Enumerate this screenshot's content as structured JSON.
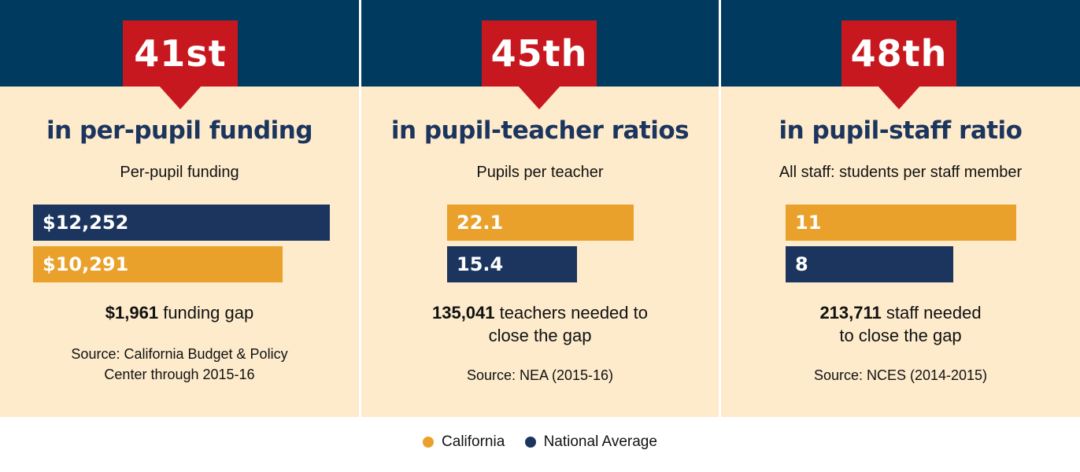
{
  "colors": {
    "california": "#eaa12c",
    "national_average": "#1c355e",
    "header": "#003a5e",
    "rank_badge": "#c8181f",
    "panel_bg": "#fdebcc"
  },
  "panels": [
    {
      "rank": "41st",
      "headline": "in per-pupil funding",
      "subtitle": "Per-pupil funding",
      "gap_value": "$1,961",
      "gap_text_line1": " funding gap",
      "gap_text_line2": "",
      "source_line1": "Source: California Budget & Policy",
      "source_line2": "Center through 2015-16"
    },
    {
      "rank": "45th",
      "headline": "in pupil-teacher ratios",
      "subtitle": "Pupils per teacher",
      "gap_value": "135,041",
      "gap_text_line1": " teachers needed to",
      "gap_text_line2": "close the gap",
      "source_line1": "Source: NEA (2015-16)",
      "source_line2": ""
    },
    {
      "rank": "48th",
      "headline": "in pupil-staff ratio",
      "subtitle": "All staff: students per staff member",
      "gap_value": "213,711",
      "gap_text_line1": " staff needed",
      "gap_text_line2": "to close the gap",
      "source_line1": "Source: NCES (2014-2015)",
      "source_line2": ""
    }
  ],
  "legend": {
    "california": "California",
    "national_average": "National Average"
  },
  "chart_data": [
    {
      "type": "bar",
      "title": "in per-pupil funding",
      "subtitle": "Per-pupil funding",
      "series": [
        {
          "name": "National Average",
          "value": 12252,
          "label": "$12,252"
        },
        {
          "name": "California",
          "value": 10291,
          "label": "$10,291"
        }
      ]
    },
    {
      "type": "bar",
      "title": "in pupil-teacher ratios",
      "subtitle": "Pupils per teacher",
      "series": [
        {
          "name": "California",
          "value": 22.1,
          "label": "22.1"
        },
        {
          "name": "National Average",
          "value": 15.4,
          "label": "15.4"
        }
      ]
    },
    {
      "type": "bar",
      "title": "in pupil-staff ratio",
      "subtitle": "All staff: students per staff member",
      "series": [
        {
          "name": "California",
          "value": 11,
          "label": "11"
        },
        {
          "name": "National Average",
          "value": 8,
          "label": "8"
        }
      ]
    }
  ]
}
